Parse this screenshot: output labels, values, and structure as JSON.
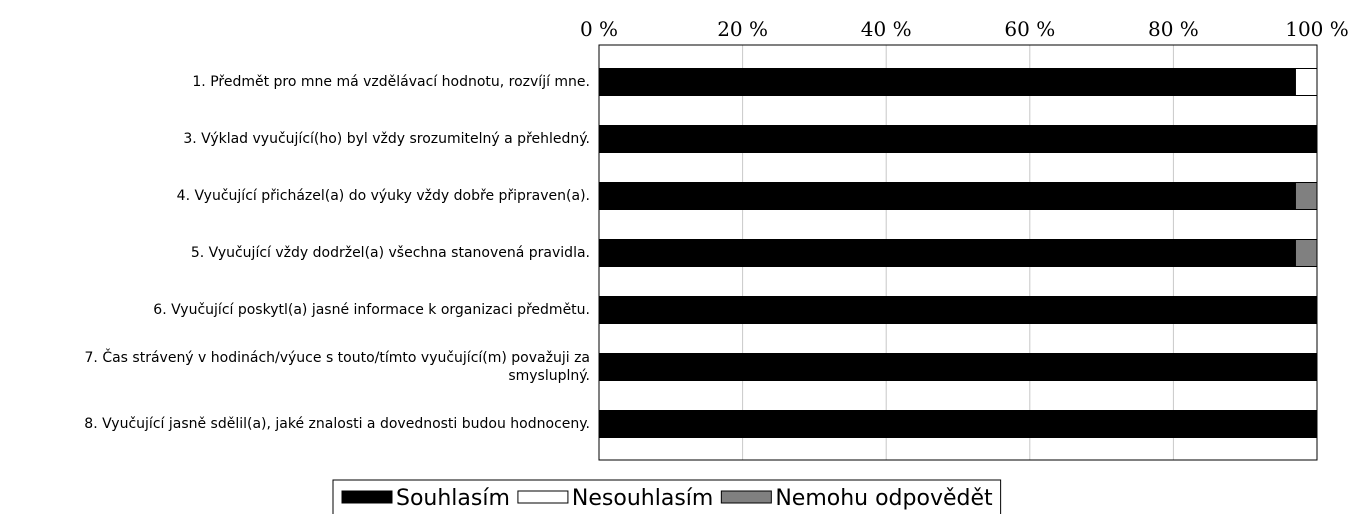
{
  "chart_data": {
    "type": "stacked-bar-horizontal",
    "categories": [
      "1. Předmět pro mne má vzdělávací hodnotu, rozvíjí mne.",
      "3. Výklad vyučující(ho) byl vždy srozumitelný a přehledný.",
      "4. Vyučující přicházel(a) do výuky vždy dobře připraven(a).",
      "5. Vyučující vždy dodržel(a) všechna stanovená pravidla.",
      "6. Vyučující poskytl(a) jasné informace k organizaci předmětu.",
      "7. Čas strávený v hodinách/výuce s touto/tímto vyučující(m) považuji za smysluplný.",
      "8. Vyučující jasně sdělil(a), jaké znalosti a dovednosti budou hodnoceny."
    ],
    "series": [
      {
        "name": "Souhlasím",
        "color": "#000000",
        "values": [
          97,
          100,
          97,
          97,
          100,
          100,
          100
        ]
      },
      {
        "name": "Nesouhlasím",
        "color": "#ffffff",
        "values": [
          3,
          0,
          0,
          0,
          0,
          0,
          0
        ]
      },
      {
        "name": "Nemohu odpovědět",
        "color": "#808080",
        "values": [
          0,
          0,
          3,
          3,
          0,
          0,
          0
        ]
      }
    ],
    "xlim": [
      0,
      100
    ],
    "xticks": [
      {
        "value": 0,
        "label": "0 %"
      },
      {
        "value": 20,
        "label": "20 %"
      },
      {
        "value": 40,
        "label": "40 %"
      },
      {
        "value": 60,
        "label": "60 %"
      },
      {
        "value": 80,
        "label": "80 %"
      },
      {
        "value": 100,
        "label": "100 %"
      }
    ],
    "grid": true,
    "legend": "bottom"
  }
}
